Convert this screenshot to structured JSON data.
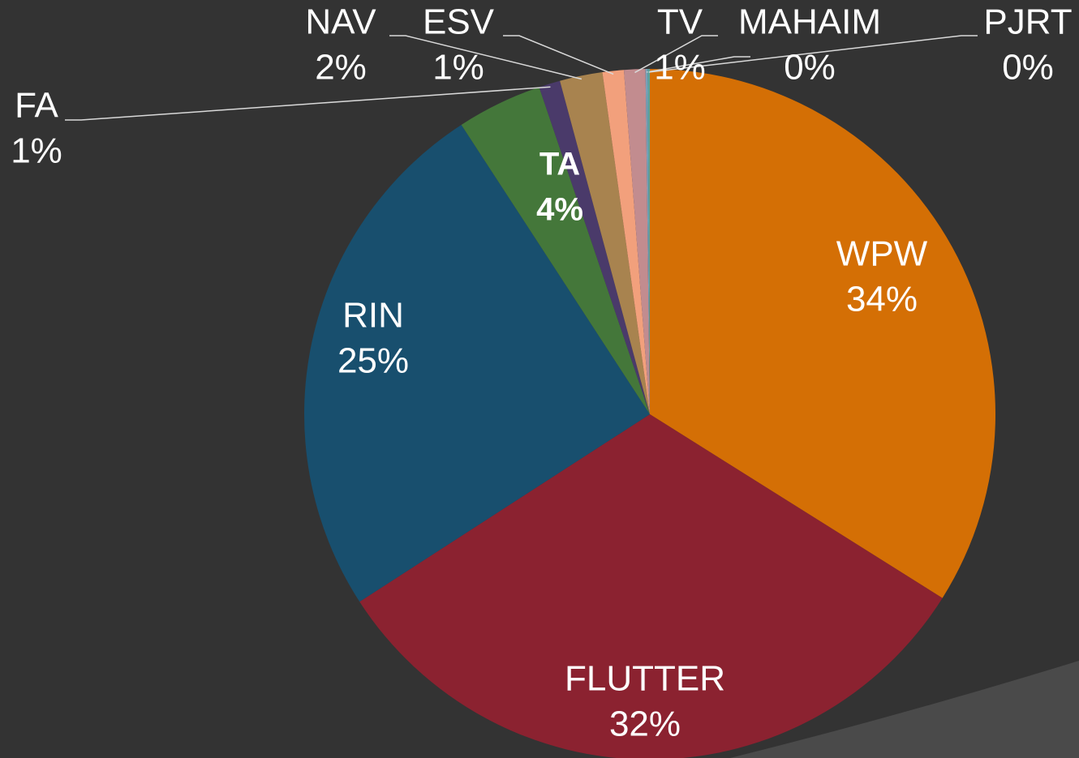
{
  "chart_data": {
    "type": "pie",
    "categories": [
      "WPW",
      "FLUTTER",
      "RIN",
      "TA",
      "FA",
      "NAV",
      "ESV",
      "TV",
      "MAHAIM",
      "PJRT"
    ],
    "values": [
      34,
      32,
      25,
      4,
      1,
      2,
      1,
      1,
      0.1,
      0.1
    ],
    "value_labels": [
      "34%",
      "32%",
      "25%",
      "4%",
      "1%",
      "2%",
      "1%",
      "1%",
      "0%",
      "0%"
    ],
    "colors": [
      "#d46f05",
      "#8b2230",
      "#184f6e",
      "#44773a",
      "#4a3a6a",
      "#a8834f",
      "#f2a07c",
      "#c28c8f",
      "#7aa0b8",
      "#5aa3a0"
    ]
  }
}
